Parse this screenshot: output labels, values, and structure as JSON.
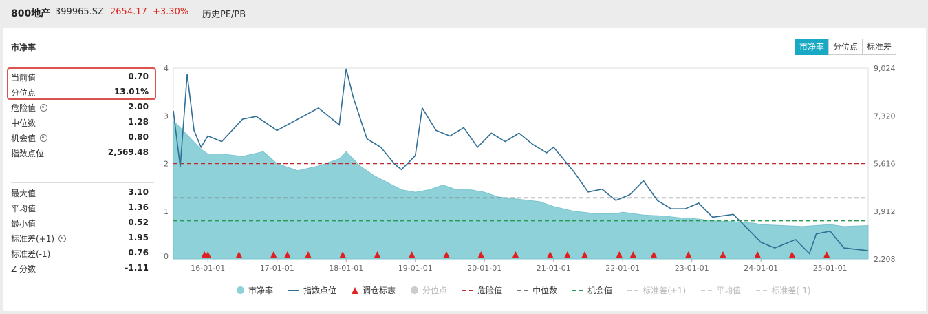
{
  "header": {
    "name": "800地产",
    "code": "399965.SZ",
    "price": "2654.17",
    "change": "+3.30%",
    "link": "历史PE/PB"
  },
  "panel_title": "市净率",
  "tabs": [
    {
      "label": "市净率",
      "active": true
    },
    {
      "label": "分位点",
      "active": false
    },
    {
      "label": "标准差",
      "active": false
    }
  ],
  "stats_top": [
    {
      "label": "当前值",
      "value": "0.70",
      "gear": false
    },
    {
      "label": "分位点",
      "value": "13.01%",
      "gear": false
    },
    {
      "label": "危险值",
      "value": "2.00",
      "gear": true
    },
    {
      "label": "中位数",
      "value": "1.28",
      "gear": false
    },
    {
      "label": "机会值",
      "value": "0.80",
      "gear": true
    },
    {
      "label": "指数点位",
      "value": "2,569.48",
      "gear": false
    }
  ],
  "stats_bottom": [
    {
      "label": "最大值",
      "value": "3.10",
      "gear": false
    },
    {
      "label": "平均值",
      "value": "1.36",
      "gear": false
    },
    {
      "label": "最小值",
      "value": "0.52",
      "gear": false
    },
    {
      "label": "标准差(+1)",
      "value": "1.95",
      "gear": true
    },
    {
      "label": "标准差(-1)",
      "value": "0.76",
      "gear": false
    },
    {
      "label": "Z 分数",
      "value": "-1.11",
      "gear": false
    }
  ],
  "legend": [
    {
      "label": "市净率",
      "type": "circle",
      "color": "#8fd1d8",
      "dim": false
    },
    {
      "label": "指数点位",
      "type": "line",
      "color": "#2f6f96",
      "dim": false
    },
    {
      "label": "调仓标志",
      "type": "tri",
      "color": "#e02020",
      "dim": false
    },
    {
      "label": "分位点",
      "type": "circle",
      "color": "#cccccc",
      "dim": true
    },
    {
      "label": "危险值",
      "type": "dash",
      "color": "#c0282b",
      "dim": false
    },
    {
      "label": "中位数",
      "type": "dash",
      "color": "#777777",
      "dim": false
    },
    {
      "label": "机会值",
      "type": "dash",
      "color": "#2a9a52",
      "dim": false
    },
    {
      "label": "标准差(+1)",
      "type": "dash",
      "color": "#cccccc",
      "dim": true
    },
    {
      "label": "平均值",
      "type": "dash",
      "color": "#cccccc",
      "dim": true
    },
    {
      "label": "标准差(-1)",
      "type": "dash",
      "color": "#cccccc",
      "dim": true
    }
  ],
  "chart_data": {
    "type": "area",
    "x_ticks": [
      "16-01-01",
      "17-01-01",
      "18-01-01",
      "19-01-01",
      "20-01-01",
      "21-01-01",
      "22-01-01",
      "23-01-01",
      "24-01-01",
      "25-01-01"
    ],
    "left_axis": {
      "ticks": [
        "0",
        "1",
        "2",
        "3",
        "4"
      ],
      "range": [
        0,
        4
      ]
    },
    "right_axis": {
      "ticks": [
        "2,208",
        "3,912",
        "5,616",
        "7,320",
        "9,024"
      ],
      "range": [
        2208,
        9024
      ]
    },
    "x_range": [
      2015.5,
      2025.55
    ],
    "reference_lines": {
      "danger": 2.0,
      "median": 1.28,
      "opportunity": 0.8
    },
    "colors": {
      "pb_fill": "#8fd1d8",
      "pb_line": "#7cc5ce",
      "index_line": "#2f6f96",
      "danger": "#c0282b",
      "median": "#777777",
      "opportunity": "#2a9a52",
      "marker": "#e02020"
    },
    "pb_series": {
      "name": "市净率",
      "x": [
        2015.5,
        2015.7,
        2015.9,
        2016.0,
        2016.2,
        2016.5,
        2016.8,
        2017.0,
        2017.3,
        2017.6,
        2017.9,
        2018.0,
        2018.2,
        2018.4,
        2018.6,
        2018.8,
        2019.0,
        2019.2,
        2019.4,
        2019.6,
        2019.8,
        2020.0,
        2020.2,
        2020.5,
        2020.8,
        2021.0,
        2021.3,
        2021.6,
        2021.9,
        2022.0,
        2022.3,
        2022.6,
        2022.9,
        2023.0,
        2023.3,
        2023.6,
        2023.9,
        2024.0,
        2024.3,
        2024.6,
        2024.8,
        2025.0,
        2025.2,
        2025.55
      ],
      "values": [
        2.9,
        2.6,
        2.3,
        2.2,
        2.2,
        2.15,
        2.25,
        2.0,
        1.85,
        1.95,
        2.1,
        2.25,
        1.95,
        1.75,
        1.6,
        1.45,
        1.4,
        1.45,
        1.55,
        1.45,
        1.45,
        1.4,
        1.3,
        1.25,
        1.2,
        1.1,
        1.0,
        0.95,
        0.95,
        0.98,
        0.92,
        0.9,
        0.85,
        0.85,
        0.8,
        0.78,
        0.75,
        0.72,
        0.7,
        0.68,
        0.7,
        0.72,
        0.68,
        0.7
      ]
    },
    "index_series": {
      "name": "指数点位",
      "x": [
        2015.5,
        2015.6,
        2015.7,
        2015.8,
        2015.9,
        2016.0,
        2016.2,
        2016.5,
        2016.7,
        2017.0,
        2017.3,
        2017.6,
        2017.9,
        2018.0,
        2018.1,
        2018.3,
        2018.5,
        2018.7,
        2018.8,
        2019.0,
        2019.1,
        2019.3,
        2019.5,
        2019.7,
        2019.9,
        2020.1,
        2020.3,
        2020.5,
        2020.7,
        2020.9,
        2021.0,
        2021.3,
        2021.5,
        2021.7,
        2021.9,
        2022.1,
        2022.3,
        2022.5,
        2022.7,
        2022.9,
        2023.1,
        2023.3,
        2023.6,
        2023.8,
        2024.0,
        2024.2,
        2024.5,
        2024.7,
        2024.8,
        2025.0,
        2025.2,
        2025.55
      ],
      "values": [
        7500,
        5500,
        8800,
        6800,
        6200,
        6600,
        6400,
        7200,
        7300,
        6800,
        7200,
        7600,
        7000,
        9000,
        8000,
        6500,
        6200,
        5600,
        5400,
        5900,
        7600,
        6800,
        6600,
        6900,
        6200,
        6700,
        6400,
        6700,
        6300,
        6000,
        6200,
        5300,
        4600,
        4700,
        4300,
        4500,
        5000,
        4300,
        4000,
        4000,
        4200,
        3700,
        3800,
        3300,
        2800,
        2600,
        2900,
        2400,
        3100,
        3200,
        2600,
        2500
      ]
    },
    "markers_x": [
      2015.95,
      2016.0,
      2016.45,
      2016.95,
      2017.15,
      2017.45,
      2017.95,
      2018.45,
      2018.95,
      2019.45,
      2019.95,
      2020.45,
      2020.95,
      2021.2,
      2021.45,
      2021.95,
      2022.15,
      2022.45,
      2022.95,
      2023.45,
      2023.95,
      2024.45,
      2024.95
    ]
  }
}
